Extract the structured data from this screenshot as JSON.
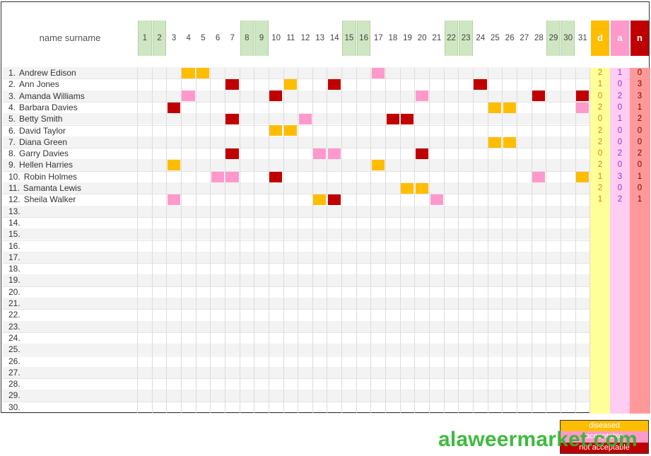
{
  "header": {
    "name_label": "name surname"
  },
  "days": [
    1,
    2,
    3,
    4,
    5,
    6,
    7,
    8,
    9,
    10,
    11,
    12,
    13,
    14,
    15,
    16,
    17,
    18,
    19,
    20,
    21,
    22,
    23,
    24,
    25,
    26,
    27,
    28,
    29,
    30,
    31
  ],
  "weekend_days": [
    1,
    2,
    8,
    9,
    15,
    16,
    22,
    23,
    29,
    30
  ],
  "summary_headers": {
    "d": "d",
    "a": "a",
    "n": "n"
  },
  "colors": {
    "diseased": "#ffbd00",
    "acceptable": "#ff99cc",
    "not_acceptable": "#c00000",
    "weekend": "#cfe6c3",
    "d_column": "#ffff99",
    "a_column": "#ffccf2",
    "n_column": "#ff9999"
  },
  "rows": [
    {
      "num": "1.",
      "name": "Andrew Edison",
      "marks": [
        [
          4,
          "diseased"
        ],
        [
          5,
          "diseased"
        ],
        [
          17,
          "acceptable"
        ]
      ],
      "d": "2",
      "a": "1",
      "n": "0"
    },
    {
      "num": "2.",
      "name": "Ann Jones",
      "marks": [
        [
          7,
          "not_acceptable"
        ],
        [
          11,
          "diseased"
        ],
        [
          14,
          "not_acceptable"
        ],
        [
          24,
          "not_acceptable"
        ]
      ],
      "d": "1",
      "a": "0",
      "n": "3"
    },
    {
      "num": "3.",
      "name": "Amanda  Williams",
      "marks": [
        [
          4,
          "acceptable"
        ],
        [
          10,
          "not_acceptable"
        ],
        [
          20,
          "acceptable"
        ],
        [
          28,
          "not_acceptable"
        ],
        [
          31,
          "not_acceptable"
        ]
      ],
      "d": "0",
      "a": "2",
      "n": "3"
    },
    {
      "num": "4.",
      "name": "Barbara Davies",
      "marks": [
        [
          3,
          "not_acceptable"
        ],
        [
          25,
          "diseased"
        ],
        [
          26,
          "diseased"
        ],
        [
          31,
          "acceptable"
        ]
      ],
      "d": "2",
      "a": "0",
      "n": "1"
    },
    {
      "num": "5.",
      "name": "Betty Smith",
      "marks": [
        [
          7,
          "not_acceptable"
        ],
        [
          12,
          "acceptable"
        ],
        [
          18,
          "not_acceptable"
        ],
        [
          19,
          "not_acceptable"
        ]
      ],
      "d": "0",
      "a": "1",
      "n": "2"
    },
    {
      "num": "6.",
      "name": "David Taylor",
      "marks": [
        [
          10,
          "diseased"
        ],
        [
          11,
          "diseased"
        ]
      ],
      "d": "2",
      "a": "0",
      "n": "0"
    },
    {
      "num": "7.",
      "name": "Diana Green",
      "marks": [
        [
          25,
          "diseased"
        ],
        [
          26,
          "diseased"
        ]
      ],
      "d": "2",
      "a": "0",
      "n": "0"
    },
    {
      "num": "8.",
      "name": "Garry Davies",
      "marks": [
        [
          7,
          "not_acceptable"
        ],
        [
          13,
          "acceptable"
        ],
        [
          14,
          "acceptable"
        ],
        [
          20,
          "not_acceptable"
        ]
      ],
      "d": "0",
      "a": "2",
      "n": "2"
    },
    {
      "num": "9.",
      "name": "Hellen Harries",
      "marks": [
        [
          3,
          "diseased"
        ],
        [
          17,
          "diseased"
        ]
      ],
      "d": "2",
      "a": "0",
      "n": "0"
    },
    {
      "num": "10.",
      "name": "Robin Holmes",
      "marks": [
        [
          6,
          "acceptable"
        ],
        [
          7,
          "acceptable"
        ],
        [
          10,
          "not_acceptable"
        ],
        [
          28,
          "acceptable"
        ],
        [
          31,
          "diseased"
        ]
      ],
      "d": "1",
      "a": "3",
      "n": "1"
    },
    {
      "num": "11.",
      "name": "Samanta Lewis",
      "marks": [
        [
          19,
          "diseased"
        ],
        [
          20,
          "diseased"
        ]
      ],
      "d": "2",
      "a": "0",
      "n": "0"
    },
    {
      "num": "12.",
      "name": "Sheila Walker",
      "marks": [
        [
          3,
          "acceptable"
        ],
        [
          13,
          "diseased"
        ],
        [
          14,
          "not_acceptable"
        ],
        [
          21,
          "acceptable"
        ]
      ],
      "d": "1",
      "a": "2",
      "n": "1"
    },
    {
      "num": "13.",
      "name": "",
      "marks": [],
      "d": "",
      "a": "",
      "n": ""
    },
    {
      "num": "14.",
      "name": "",
      "marks": [],
      "d": "",
      "a": "",
      "n": ""
    },
    {
      "num": "15.",
      "name": "",
      "marks": [],
      "d": "",
      "a": "",
      "n": ""
    },
    {
      "num": "16.",
      "name": "",
      "marks": [],
      "d": "",
      "a": "",
      "n": ""
    },
    {
      "num": "17.",
      "name": "",
      "marks": [],
      "d": "",
      "a": "",
      "n": ""
    },
    {
      "num": "18.",
      "name": "",
      "marks": [],
      "d": "",
      "a": "",
      "n": ""
    },
    {
      "num": "19.",
      "name": "",
      "marks": [],
      "d": "",
      "a": "",
      "n": ""
    },
    {
      "num": "20.",
      "name": "",
      "marks": [],
      "d": "",
      "a": "",
      "n": ""
    },
    {
      "num": "21.",
      "name": "",
      "marks": [],
      "d": "",
      "a": "",
      "n": ""
    },
    {
      "num": "22.",
      "name": "",
      "marks": [],
      "d": "",
      "a": "",
      "n": ""
    },
    {
      "num": "23.",
      "name": "",
      "marks": [],
      "d": "",
      "a": "",
      "n": ""
    },
    {
      "num": "24.",
      "name": "",
      "marks": [],
      "d": "",
      "a": "",
      "n": ""
    },
    {
      "num": "25.",
      "name": "",
      "marks": [],
      "d": "",
      "a": "",
      "n": ""
    },
    {
      "num": "26.",
      "name": "",
      "marks": [],
      "d": "",
      "a": "",
      "n": ""
    },
    {
      "num": "27.",
      "name": "",
      "marks": [],
      "d": "",
      "a": "",
      "n": ""
    },
    {
      "num": "28.",
      "name": "",
      "marks": [],
      "d": "",
      "a": "",
      "n": ""
    },
    {
      "num": "29.",
      "name": "",
      "marks": [],
      "d": "",
      "a": "",
      "n": ""
    },
    {
      "num": "30.",
      "name": "",
      "marks": [],
      "d": "",
      "a": "",
      "n": ""
    }
  ],
  "legend": {
    "diseased": "diseased",
    "acceptable": "acceptable",
    "not_acceptable": "not acceptable"
  },
  "watermark": "alaweermarket.com"
}
